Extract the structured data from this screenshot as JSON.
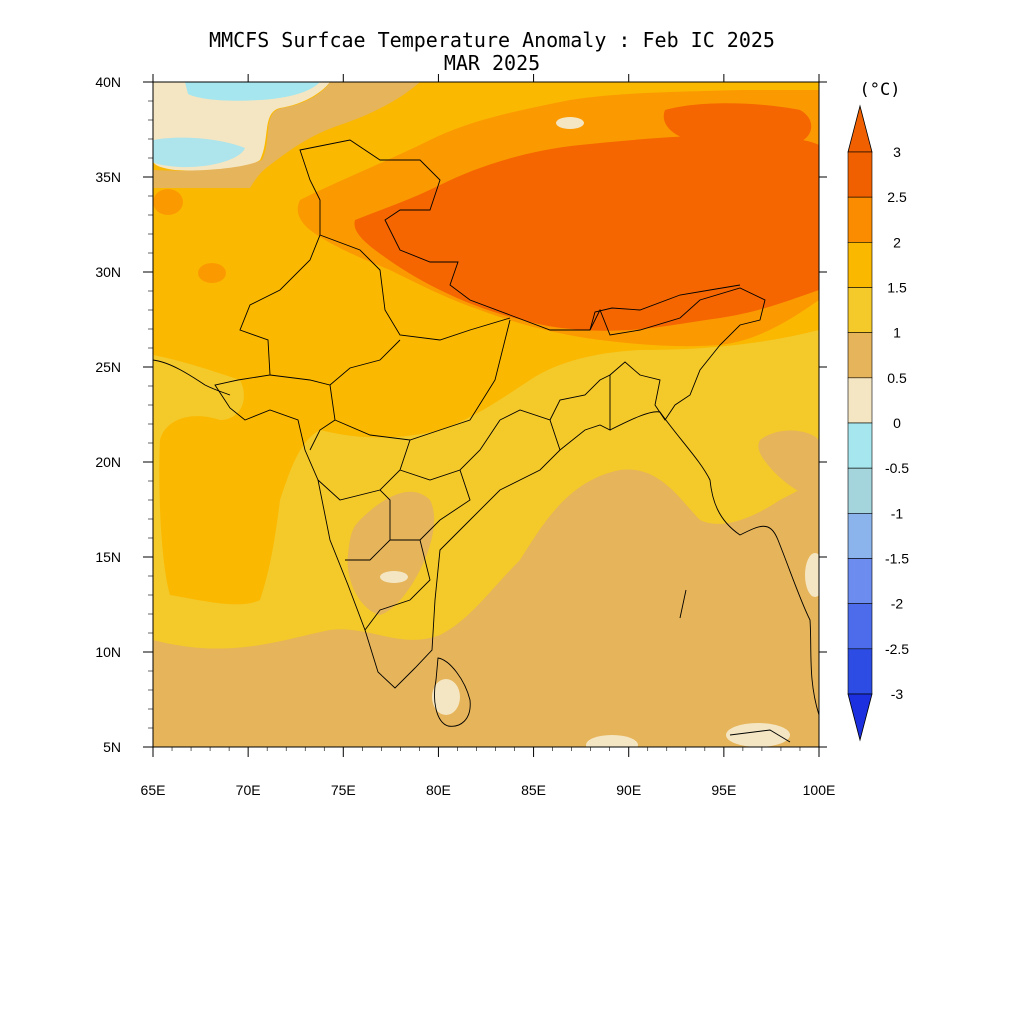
{
  "title": {
    "line1": "MMCFS Surfcae Temperature Anomaly : Feb IC 2025",
    "line2": "MAR 2025"
  },
  "map": {
    "lon_range": [
      65,
      100
    ],
    "lat_range": [
      5,
      40
    ],
    "x_ticks": [
      "65E",
      "70E",
      "75E",
      "80E",
      "85E",
      "90E",
      "95E",
      "100E"
    ],
    "y_ticks": [
      "40N",
      "35N",
      "30N",
      "25N",
      "20N",
      "15N",
      "10N",
      "5N"
    ],
    "x_tick_values": [
      65,
      70,
      75,
      80,
      85,
      90,
      95,
      100
    ],
    "y_tick_values": [
      40,
      35,
      30,
      25,
      20,
      15,
      10,
      5
    ]
  },
  "colorbar": {
    "unit": "(°C)",
    "labels": [
      "3",
      "2.5",
      "2",
      "1.5",
      "1",
      "0.5",
      "0",
      "-0.5",
      "-1",
      "-1.5",
      "-2",
      "-2.5",
      "-3"
    ],
    "colors": [
      "#f06000",
      "#fb8c00",
      "#fbb800",
      "#f4c92a",
      "#e6b45a",
      "#f4e6c2",
      "#a6e6ee",
      "#a4d4dc",
      "#8cb4ec",
      "#6c8cf0",
      "#4c6cec",
      "#2c4ce4"
    ],
    "over_color": "#f06000",
    "under_color": "#1c30e0"
  },
  "field_colors": {
    "hot": "#f56600",
    "warm_orange": "#fb9a00",
    "amber": "#fbb800",
    "yellow": "#f4c92a",
    "tan": "#e6b45a",
    "cream": "#f4e6c2",
    "cyan": "#a6e6ee",
    "light_cyan": "#aee4ec"
  }
}
